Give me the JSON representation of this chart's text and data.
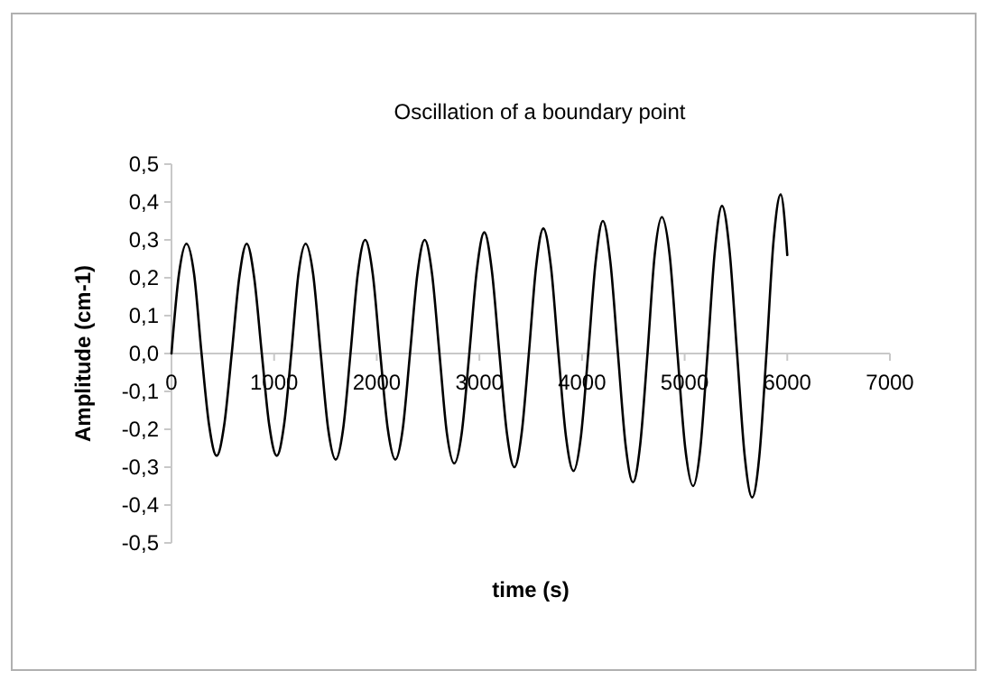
{
  "chart_data": {
    "type": "line",
    "title": "Oscillation of a boundary point",
    "xlabel": "time (s)",
    "ylabel": "Amplitude (cm-1)",
    "xlim": [
      0,
      7000
    ],
    "xticks": [
      0,
      1000,
      2000,
      3000,
      4000,
      5000,
      6000,
      7000
    ],
    "ylim": [
      -0.5,
      0.5
    ],
    "yticks": [
      {
        "value": -0.5,
        "label": "-0,5"
      },
      {
        "value": -0.4,
        "label": "-0,4"
      },
      {
        "value": -0.3,
        "label": "-0,3"
      },
      {
        "value": -0.2,
        "label": "-0,2"
      },
      {
        "value": -0.1,
        "label": "-0,1"
      },
      {
        "value": 0,
        "label": "0,0"
      },
      {
        "value": 0.1,
        "label": "0,1"
      },
      {
        "value": 0.2,
        "label": "0,2"
      },
      {
        "value": 0.3,
        "label": "0,3"
      },
      {
        "value": 0.4,
        "label": "0,4"
      },
      {
        "value": 0.5,
        "label": "0,5"
      }
    ],
    "grid": false,
    "marker": "none",
    "line_style": "solid",
    "series": [
      {
        "color": "#000000",
        "x": [
          0,
          73,
          146,
          220,
          293,
          367,
          440,
          513,
          587,
          660,
          733,
          806,
          880,
          953,
          1026,
          1096,
          1167,
          1237,
          1307,
          1380,
          1454,
          1527,
          1600,
          1672,
          1744,
          1815,
          1887,
          1961,
          2034,
          2108,
          2181,
          2253,
          2324,
          2396,
          2467,
          2539,
          2611,
          2683,
          2755,
          2828,
          2902,
          2975,
          3048,
          3121,
          3195,
          3268,
          3341,
          3412,
          3482,
          3553,
          3623,
          3697,
          3770,
          3844,
          3917,
          3989,
          4060,
          4132,
          4203,
          4277,
          4350,
          4424,
          4497,
          4567,
          4638,
          4708,
          4778,
          4854,
          4930,
          5006,
          5082,
          5153,
          5223,
          5294,
          5364,
          5438,
          5511,
          5585,
          5658,
          5728,
          5797,
          5867,
          5936,
          6000
        ],
        "values": [
          0,
          0.21,
          0.29,
          0.21,
          0,
          -0.19,
          -0.27,
          -0.19,
          0,
          0.2,
          0.29,
          0.2,
          0,
          -0.19,
          -0.27,
          -0.19,
          0,
          0.21,
          0.29,
          0.21,
          0,
          -0.2,
          -0.28,
          -0.2,
          0,
          0.21,
          0.3,
          0.21,
          0,
          -0.2,
          -0.28,
          -0.2,
          0,
          0.21,
          0.3,
          0.21,
          0,
          -0.21,
          -0.29,
          -0.21,
          0,
          0.22,
          0.32,
          0.22,
          0,
          -0.21,
          -0.3,
          -0.21,
          0,
          0.23,
          0.33,
          0.23,
          0,
          -0.22,
          -0.31,
          -0.22,
          0,
          0.24,
          0.35,
          0.24,
          0,
          -0.24,
          -0.34,
          -0.24,
          0,
          0.26,
          0.36,
          0.26,
          0,
          -0.25,
          -0.35,
          -0.25,
          0,
          0.27,
          0.39,
          0.27,
          0,
          -0.27,
          -0.38,
          -0.27,
          0,
          0.3,
          0.42,
          0.26
        ]
      }
    ]
  }
}
